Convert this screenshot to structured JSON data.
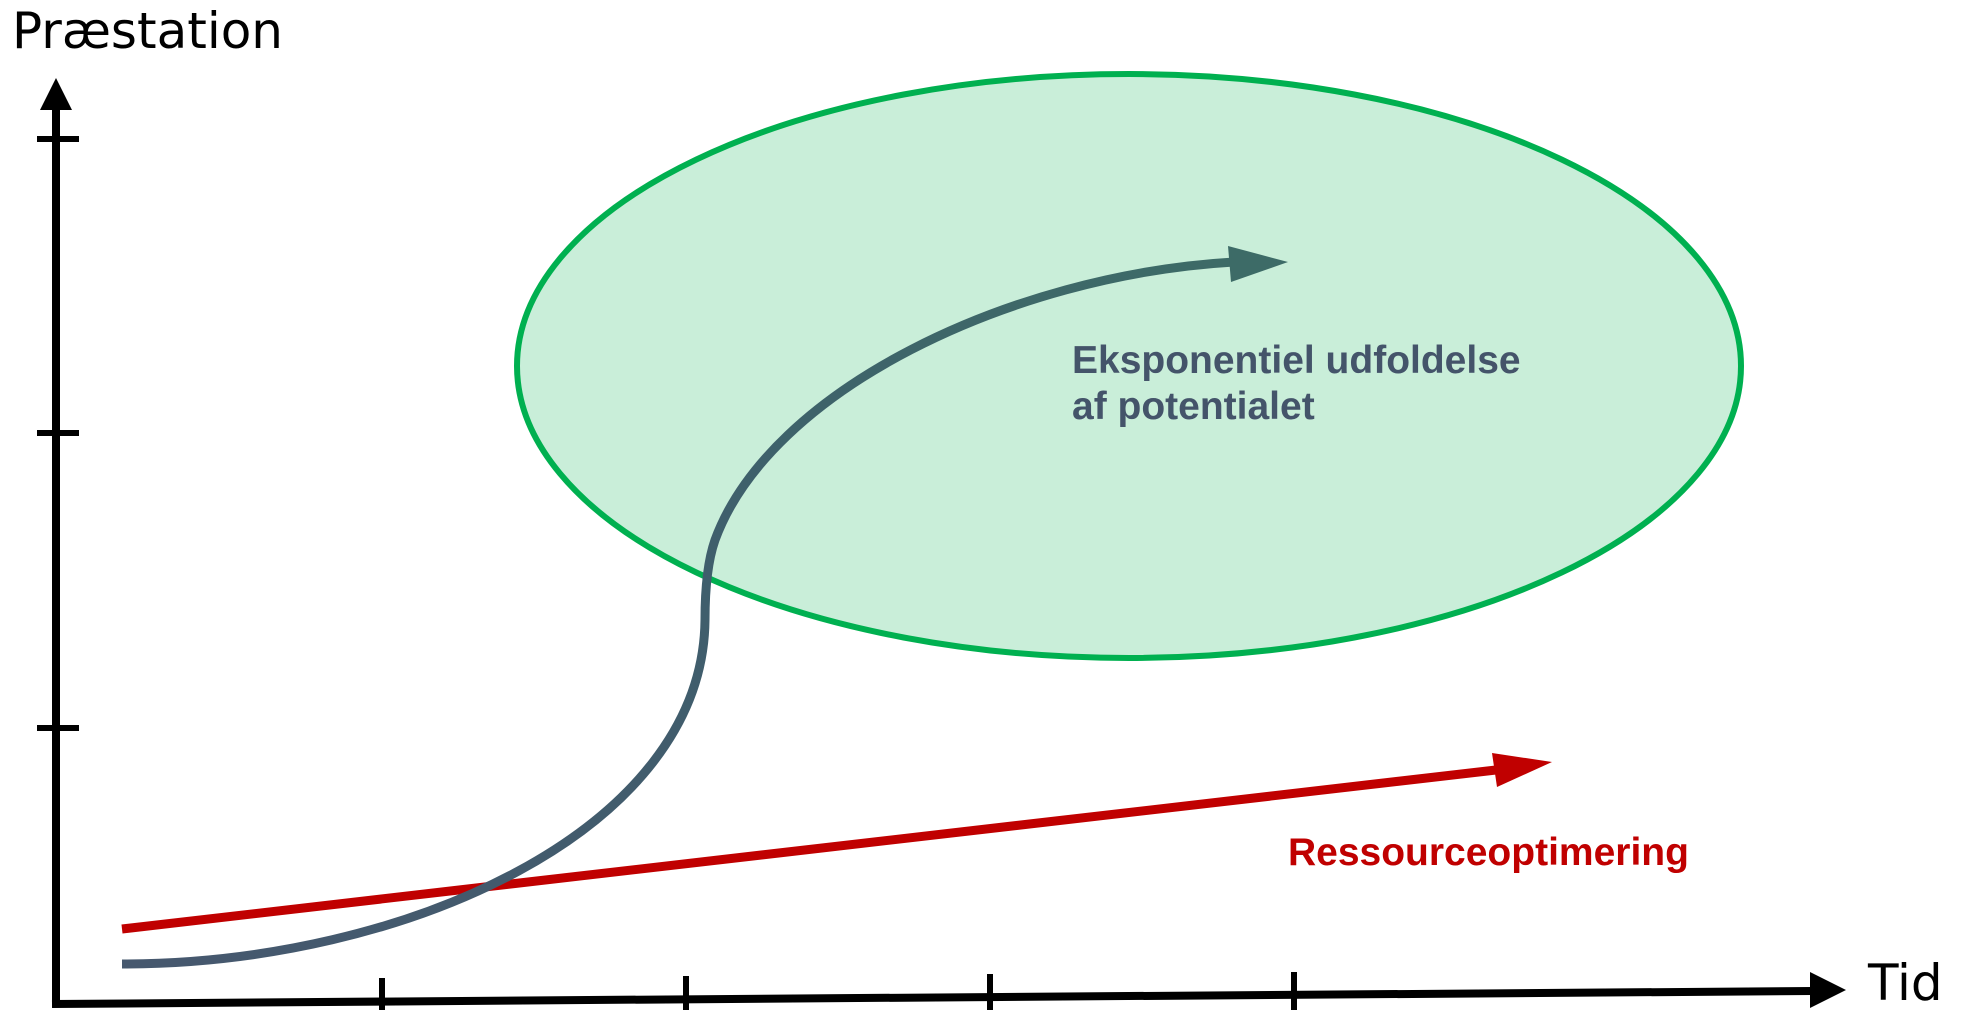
{
  "axes": {
    "y_label": "Præstation",
    "x_label": "Tid"
  },
  "curves": {
    "exponential": {
      "label_line1": "Eksponentiel udfoldelse",
      "label_line2": "af potentialet",
      "color": "#3d6b67",
      "tail_color": "#46586e"
    },
    "resource": {
      "label": "Ressourceoptimering",
      "color": "#c00000"
    }
  },
  "zone": {
    "fill": "#c9eed9",
    "stroke": "#00b050"
  },
  "axis_color": "#000000",
  "text_colors": {
    "exponential_label": "#44546a",
    "resource_label": "#c00000"
  }
}
